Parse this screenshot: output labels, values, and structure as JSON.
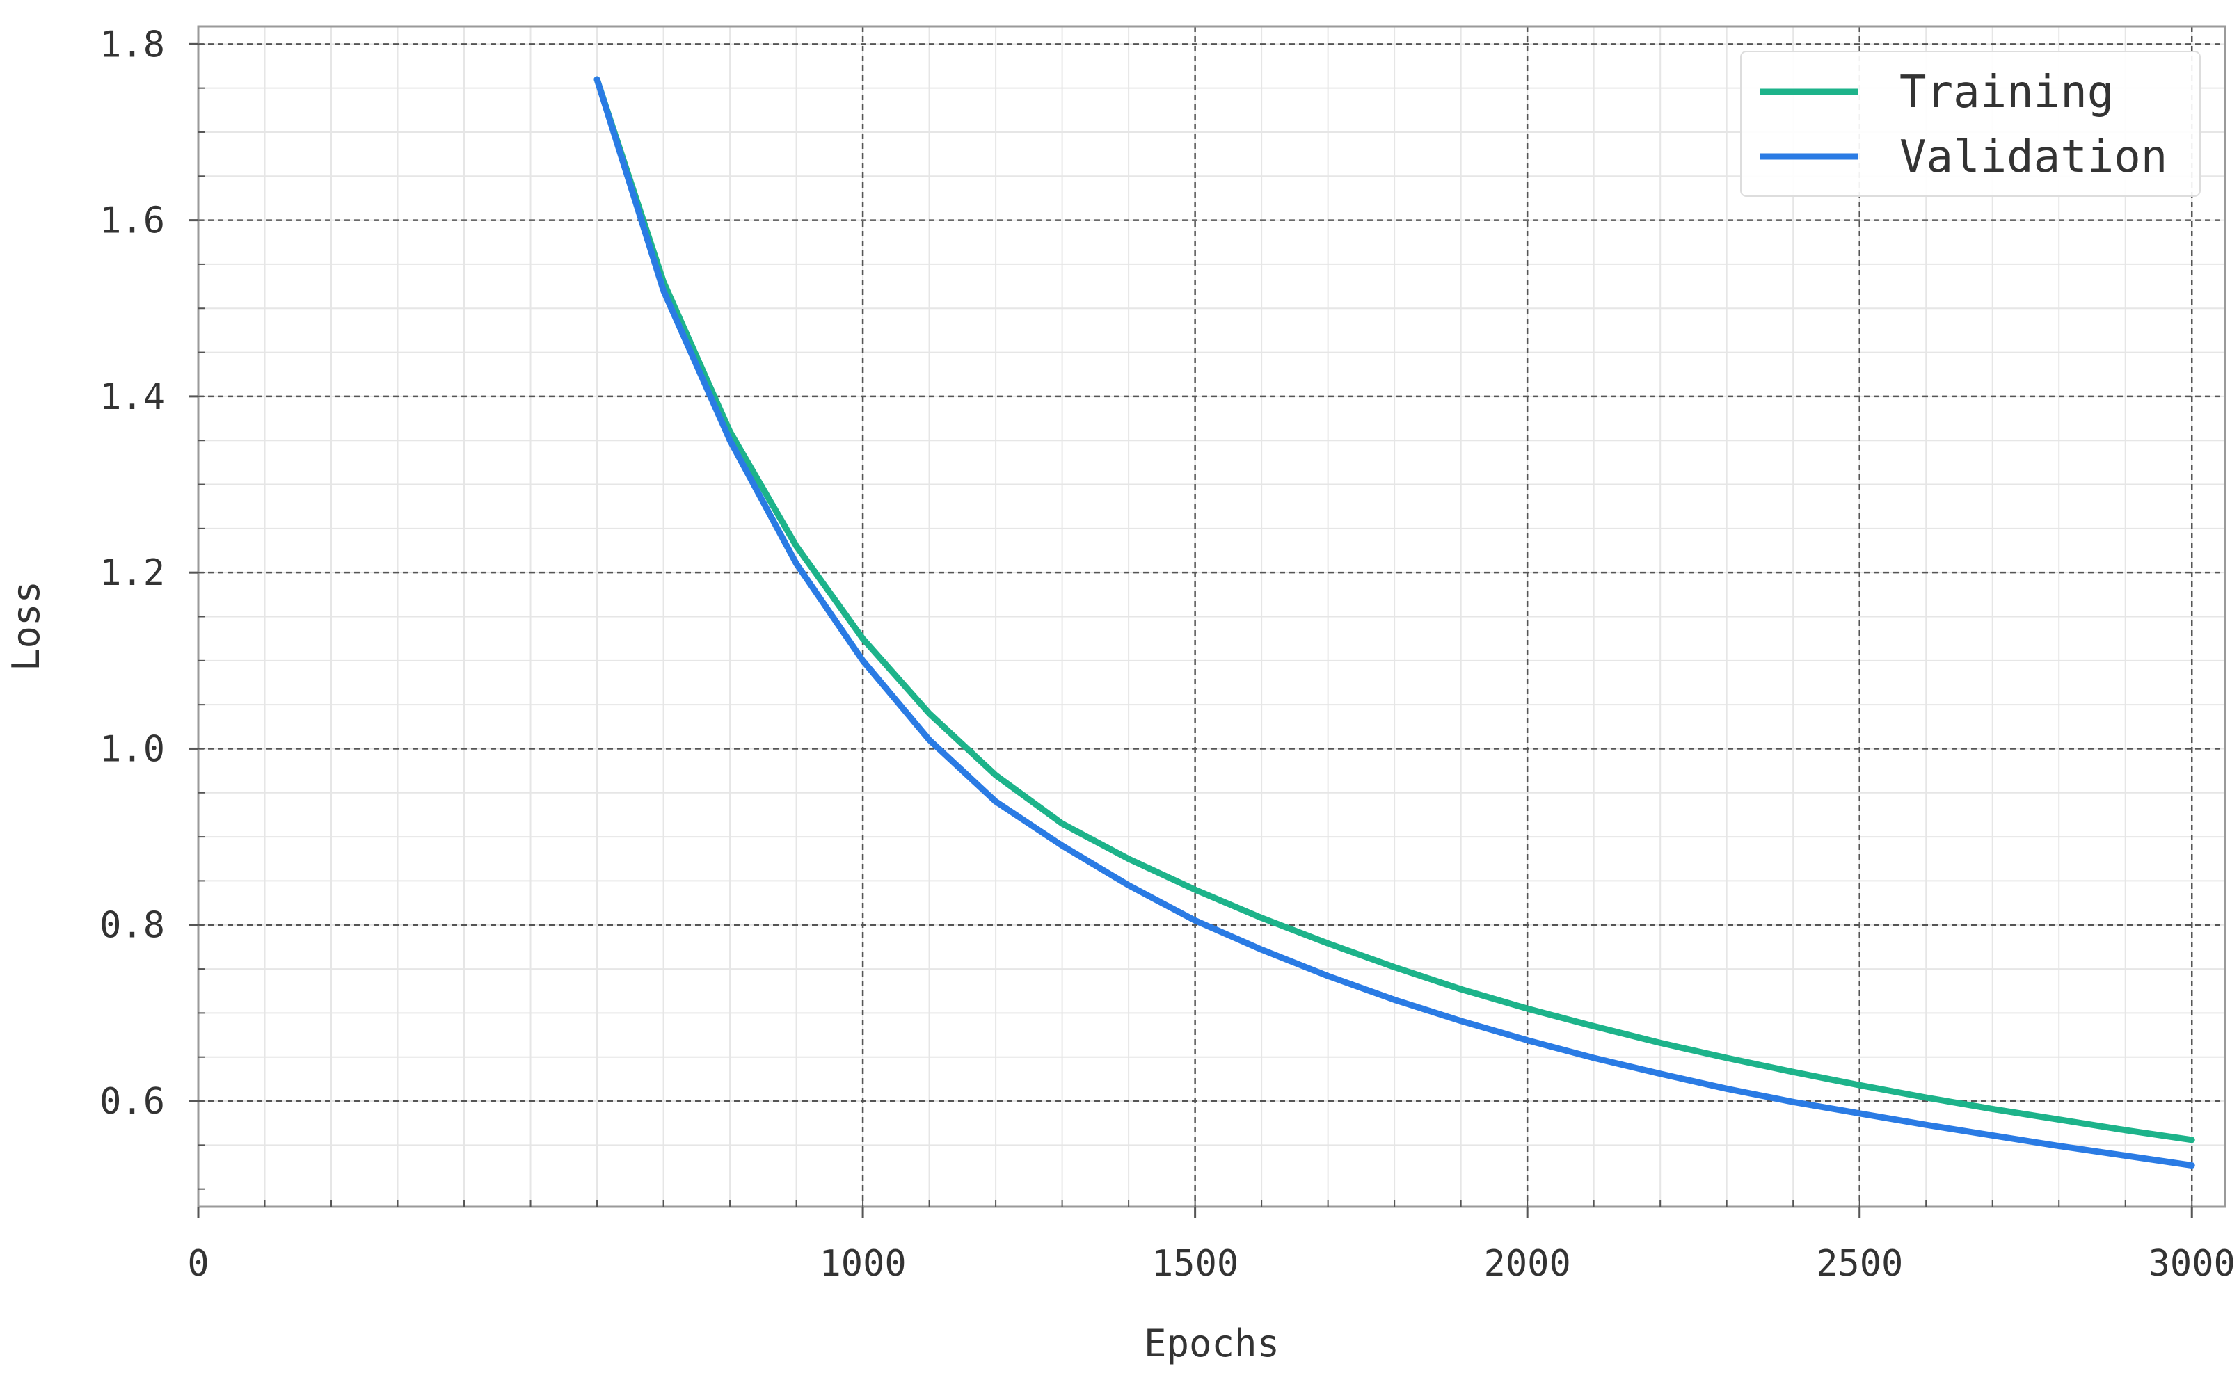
{
  "chart_data": {
    "type": "line",
    "title": "",
    "xlabel": "Epochs",
    "ylabel": "Loss",
    "xlim": [
      0,
      3050
    ],
    "ylim": [
      0.48,
      1.82
    ],
    "xticks": [
      0,
      1000,
      1500,
      2000,
      2500,
      3000
    ],
    "xtick_labels": [
      "0",
      "1000",
      "1500",
      "2000",
      "2500",
      "3000"
    ],
    "yticks": [
      0.6,
      0.8,
      1.0,
      1.2,
      1.4,
      1.6,
      1.8
    ],
    "ytick_labels": [
      "0.6",
      "0.8",
      "1.0",
      "1.2",
      "1.4",
      "1.6",
      "1.8"
    ],
    "grid": true,
    "legend_position": "top-right",
    "series": [
      {
        "name": "Training",
        "color": "#1db38a",
        "x": [
          600,
          700,
          800,
          900,
          1000,
          1100,
          1200,
          1300,
          1400,
          1500,
          1600,
          1700,
          1800,
          1900,
          2000,
          2100,
          2200,
          2300,
          2400,
          2500,
          2600,
          2700,
          2800,
          2900,
          3000
        ],
        "y": [
          1.76,
          1.53,
          1.36,
          1.23,
          1.125,
          1.04,
          0.97,
          0.915,
          0.875,
          0.84,
          0.808,
          0.779,
          0.752,
          0.727,
          0.705,
          0.685,
          0.666,
          0.649,
          0.633,
          0.618,
          0.604,
          0.591,
          0.579,
          0.567,
          0.556
        ]
      },
      {
        "name": "Validation",
        "color": "#2a7be4",
        "x": [
          600,
          700,
          800,
          900,
          1000,
          1100,
          1200,
          1300,
          1400,
          1500,
          1600,
          1700,
          1800,
          1900,
          2000,
          2100,
          2200,
          2300,
          2400,
          2500,
          2600,
          2700,
          2800,
          2900,
          3000
        ],
        "y": [
          1.76,
          1.52,
          1.35,
          1.21,
          1.1,
          1.01,
          0.94,
          0.89,
          0.845,
          0.805,
          0.772,
          0.742,
          0.715,
          0.691,
          0.669,
          0.649,
          0.631,
          0.614,
          0.599,
          0.586,
          0.573,
          0.561,
          0.549,
          0.538,
          0.527
        ]
      }
    ]
  }
}
